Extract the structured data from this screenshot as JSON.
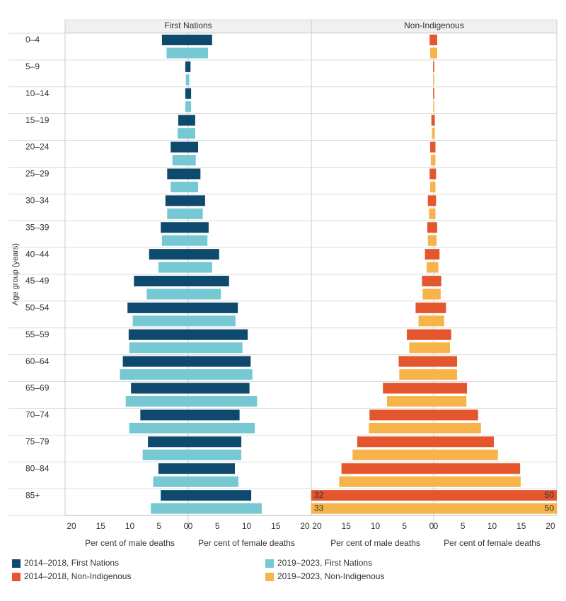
{
  "chart_data": {
    "type": "pyramid",
    "y_label": "Age group (years)",
    "categories": [
      "0–4",
      "5–9",
      "10–14",
      "15–19",
      "20–24",
      "25–29",
      "30–34",
      "35–39",
      "40–44",
      "45–49",
      "50–54",
      "55–59",
      "60–64",
      "65–69",
      "70–74",
      "75–79",
      "80–84",
      "85+"
    ],
    "panels": [
      {
        "title": "First Nations",
        "male_label": "Per cent of male deaths",
        "female_label": "Per cent of female deaths",
        "xlim": [
          0,
          20
        ],
        "xticks": [
          0,
          5,
          10,
          15,
          20
        ],
        "series": [
          {
            "name": "2014–2018, First Nations",
            "color": "#0e4a6e",
            "male": [
              4.5,
              0.5,
              0.5,
              1.7,
              3.0,
              3.6,
              3.9,
              4.7,
              6.7,
              9.3,
              10.4,
              10.2,
              11.2,
              9.8,
              8.2,
              6.9,
              5.1,
              4.7
            ],
            "female": [
              4.1,
              0.4,
              0.5,
              1.2,
              1.7,
              2.1,
              2.9,
              3.5,
              5.3,
              7.0,
              8.5,
              10.2,
              10.7,
              10.5,
              8.8,
              9.1,
              8.0,
              10.8
            ]
          },
          {
            "name": "2019–2023, First Nations",
            "color": "#76c8d3",
            "male": [
              3.7,
              0.4,
              0.5,
              1.8,
              2.7,
              3.0,
              3.6,
              4.5,
              5.1,
              7.1,
              9.5,
              10.1,
              11.7,
              10.7,
              10.1,
              7.8,
              6.0,
              6.4
            ],
            "female": [
              3.4,
              0.2,
              0.5,
              1.2,
              1.3,
              1.7,
              2.5,
              3.3,
              4.1,
              5.6,
              8.1,
              9.3,
              11.0,
              11.8,
              11.4,
              9.1,
              8.6,
              12.6
            ]
          }
        ]
      },
      {
        "title": "Non-Indigenous",
        "male_label": "Per cent of male deaths",
        "female_label": "Per cent of female deaths",
        "xlim": [
          0,
          20
        ],
        "xticks": [
          0,
          5,
          10,
          15,
          20
        ],
        "series": [
          {
            "name": "2014–2018, Non-Indigenous",
            "color": "#e4572e",
            "male": [
              0.7,
              0.1,
              0.1,
              0.4,
              0.6,
              0.7,
              1.0,
              1.1,
              1.5,
              2.0,
              3.1,
              4.6,
              6.0,
              8.7,
              11.0,
              13.1,
              15.8,
              32
            ],
            "female": [
              0.6,
              0.1,
              0.1,
              0.2,
              0.3,
              0.4,
              0.4,
              0.6,
              1.0,
              1.3,
              2.1,
              3.0,
              4.0,
              5.7,
              7.6,
              10.3,
              14.8,
              50
            ]
          },
          {
            "name": "2019–2023, Non-Indigenous",
            "color": "#f7b44a",
            "male": [
              0.6,
              0.1,
              0.1,
              0.3,
              0.5,
              0.6,
              0.8,
              1.0,
              1.2,
              1.9,
              2.6,
              4.2,
              5.9,
              8.0,
              11.1,
              13.9,
              16.2,
              33
            ],
            "female": [
              0.6,
              0.1,
              0.1,
              0.2,
              0.3,
              0.3,
              0.3,
              0.5,
              0.8,
              1.2,
              1.8,
              2.8,
              4.0,
              5.6,
              8.1,
              11.0,
              14.9,
              50
            ]
          }
        ]
      }
    ]
  }
}
